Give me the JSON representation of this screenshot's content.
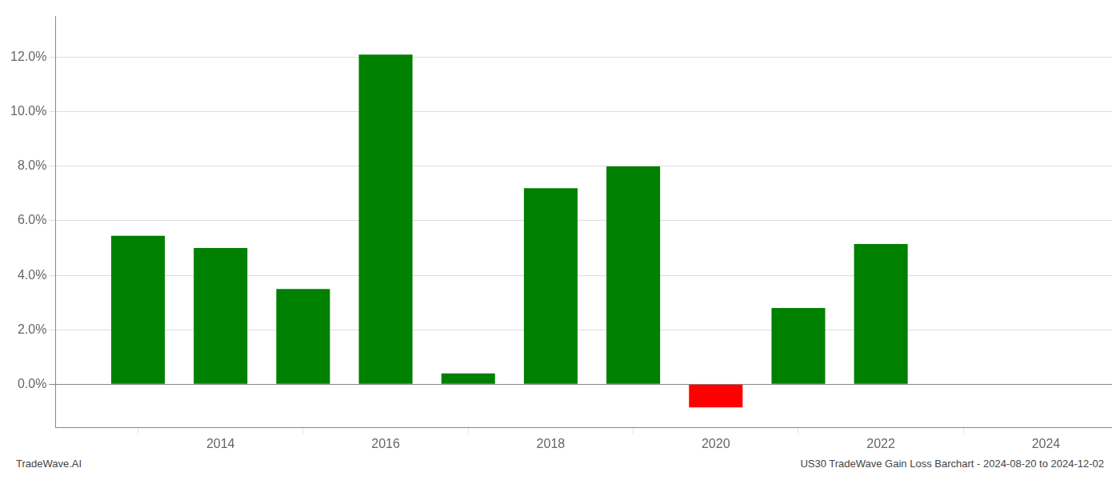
{
  "chart_data": {
    "type": "bar",
    "x": [
      2013,
      2014,
      2015,
      2016,
      2017,
      2018,
      2019,
      2020,
      2021,
      2022,
      2023
    ],
    "values": [
      5.45,
      5.0,
      3.5,
      12.1,
      0.4,
      7.2,
      8.0,
      -0.85,
      2.8,
      5.15,
      null
    ],
    "colors": [
      "#008000",
      "#008000",
      "#008000",
      "#008000",
      "#008000",
      "#008000",
      "#008000",
      "#ff0000",
      "#008000",
      "#008000",
      null
    ],
    "xlim": [
      2012.0,
      2024.8
    ],
    "xticks": [
      2014,
      2016,
      2018,
      2020,
      2022,
      2024
    ],
    "ylim": [
      -1.6,
      13.5
    ],
    "yticks": [
      {
        "value": 0.0,
        "label": "0.0%"
      },
      {
        "value": 2.0,
        "label": "2.0%"
      },
      {
        "value": 4.0,
        "label": "4.0%"
      },
      {
        "value": 6.0,
        "label": "6.0%"
      },
      {
        "value": 8.0,
        "label": "8.0%"
      },
      {
        "value": 10.0,
        "label": "10.0%"
      },
      {
        "value": 12.0,
        "label": "12.0%"
      }
    ],
    "grid": true,
    "annotations": [
      "TradeWave.AI",
      "US30 TradeWave Gain Loss Barchart - 2024-08-20 to 2024-12-02"
    ]
  }
}
